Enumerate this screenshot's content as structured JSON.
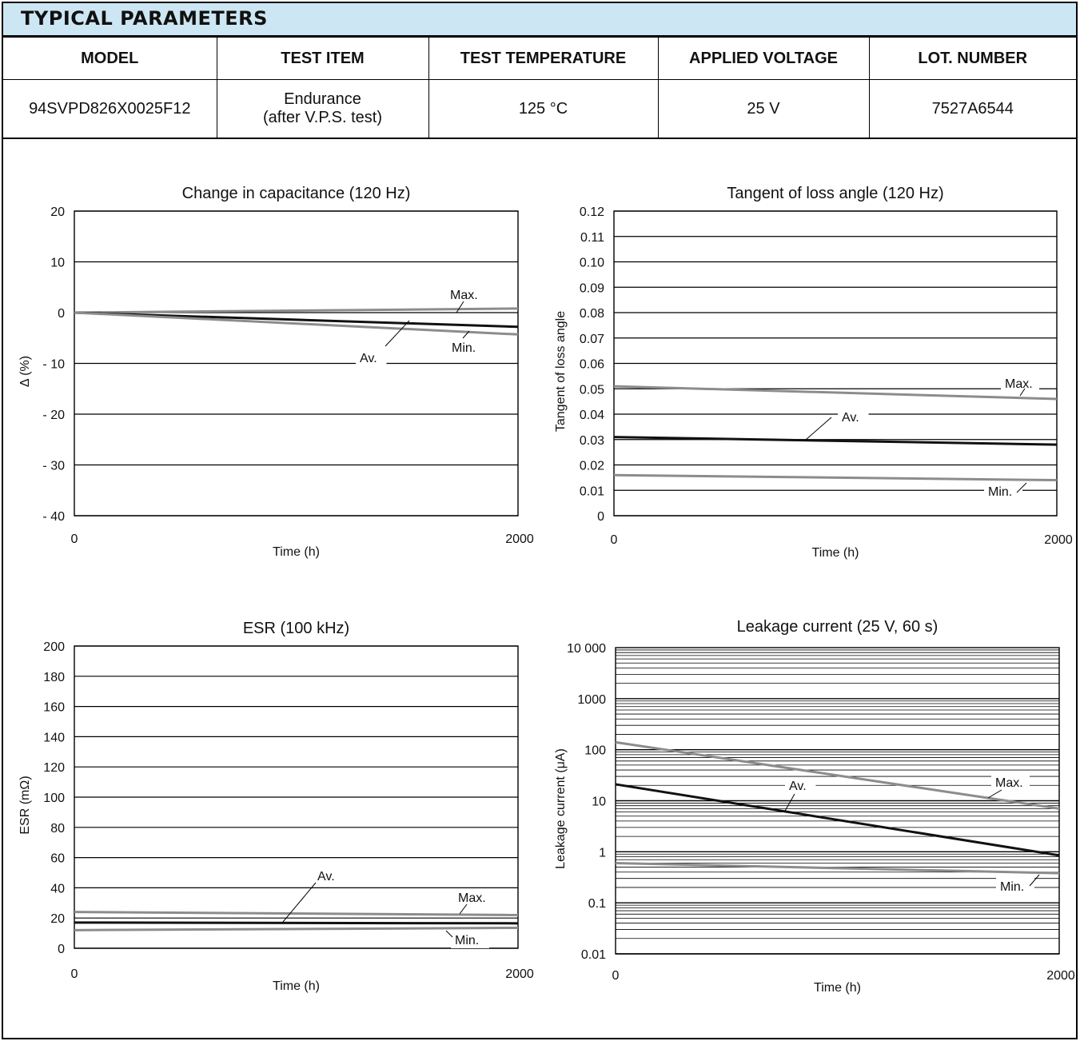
{
  "header": {
    "title": "TYPICAL PARAMETERS"
  },
  "table": {
    "columns": [
      "MODEL",
      "TEST ITEM",
      "TEST TEMPERATURE",
      "APPLIED VOLTAGE",
      "LOT. NUMBER"
    ],
    "row": {
      "model": "94SVPD826X0025F12",
      "test_item_line1": "Endurance",
      "test_item_line2": "(after V.P.S. test)",
      "temperature": "125 °C",
      "voltage": "25 V",
      "lot": "7527A6544"
    }
  },
  "colors": {
    "header_bg": "#cde6f3",
    "av_line": "#111111",
    "minmax_line": "#8c8c8c",
    "grid": "#000000"
  },
  "chart_data": [
    {
      "type": "line",
      "title": "Change in capacitance (120 Hz)",
      "xlabel": "Time (h)",
      "ylabel": "Δ (%)",
      "xlim": [
        0,
        2000
      ],
      "ylim": [
        -40,
        20
      ],
      "xticks": [
        "0",
        "2000"
      ],
      "yticks": [
        {
          "v": 20,
          "label": "20"
        },
        {
          "v": 10,
          "label": "10"
        },
        {
          "v": 0,
          "label": "0"
        },
        {
          "v": -10,
          "label": "- 10"
        },
        {
          "v": -20,
          "label": "- 20"
        },
        {
          "v": -30,
          "label": "- 30"
        },
        {
          "v": -40,
          "label": "- 40"
        }
      ],
      "grid": true,
      "series": [
        {
          "name": "Max.",
          "x": [
            0,
            2000
          ],
          "y": [
            0,
            0.8
          ]
        },
        {
          "name": "Av.",
          "x": [
            0,
            2000
          ],
          "y": [
            0,
            -2.8
          ]
        },
        {
          "name": "Min.",
          "x": [
            0,
            2000
          ],
          "y": [
            0,
            -4.3
          ]
        }
      ]
    },
    {
      "type": "line",
      "title": "Tangent of loss angle (120 Hz)",
      "xlabel": "Time (h)",
      "ylabel": "Tangent of loss angle",
      "xlim": [
        0,
        2000
      ],
      "ylim": [
        0,
        0.12
      ],
      "xticks": [
        "0",
        "2000"
      ],
      "yticks": [
        {
          "v": 0.12,
          "label": "0.12"
        },
        {
          "v": 0.11,
          "label": "0.11"
        },
        {
          "v": 0.1,
          "label": "0.10"
        },
        {
          "v": 0.09,
          "label": "0.09"
        },
        {
          "v": 0.08,
          "label": "0.08"
        },
        {
          "v": 0.07,
          "label": "0.07"
        },
        {
          "v": 0.06,
          "label": "0.06"
        },
        {
          "v": 0.05,
          "label": "0.05"
        },
        {
          "v": 0.04,
          "label": "0.04"
        },
        {
          "v": 0.03,
          "label": "0.03"
        },
        {
          "v": 0.02,
          "label": "0.02"
        },
        {
          "v": 0.01,
          "label": "0.01"
        },
        {
          "v": 0,
          "label": "0"
        }
      ],
      "grid": true,
      "series": [
        {
          "name": "Max.",
          "x": [
            0,
            2000
          ],
          "y": [
            0.051,
            0.046
          ]
        },
        {
          "name": "Av.",
          "x": [
            0,
            2000
          ],
          "y": [
            0.031,
            0.028
          ]
        },
        {
          "name": "Min.",
          "x": [
            0,
            2000
          ],
          "y": [
            0.016,
            0.014
          ]
        }
      ]
    },
    {
      "type": "line",
      "title": "ESR (100 kHz)",
      "xlabel": "Time (h)",
      "ylabel": "ESR (mΩ)",
      "xlim": [
        0,
        2000
      ],
      "ylim": [
        0,
        200
      ],
      "xticks": [
        "0",
        "2000"
      ],
      "yticks": [
        {
          "v": 200,
          "label": "200"
        },
        {
          "v": 180,
          "label": "180"
        },
        {
          "v": 160,
          "label": "160"
        },
        {
          "v": 140,
          "label": "140"
        },
        {
          "v": 120,
          "label": "120"
        },
        {
          "v": 100,
          "label": "100"
        },
        {
          "v": 80,
          "label": "80"
        },
        {
          "v": 60,
          "label": "60"
        },
        {
          "v": 40,
          "label": "40"
        },
        {
          "v": 20,
          "label": "20"
        },
        {
          "v": 0,
          "label": "0"
        }
      ],
      "grid": true,
      "series": [
        {
          "name": "Max.",
          "x": [
            0,
            2000
          ],
          "y": [
            24,
            22
          ]
        },
        {
          "name": "Av.",
          "x": [
            0,
            2000
          ],
          "y": [
            17,
            16.5
          ]
        },
        {
          "name": "Min.",
          "x": [
            0,
            2000
          ],
          "y": [
            12,
            13.5
          ]
        }
      ]
    },
    {
      "type": "line",
      "title": "Leakage current (25 V, 60 s)",
      "xlabel": "Time (h)",
      "ylabel": "Leakage current (μA)",
      "xlim": [
        0,
        2000
      ],
      "ylim": [
        0.01,
        10000
      ],
      "yscale": "log",
      "xticks": [
        "0",
        "2000"
      ],
      "yticks": [
        {
          "v": 10000,
          "label": "10 000"
        },
        {
          "v": 1000,
          "label": "1000"
        },
        {
          "v": 100,
          "label": "100"
        },
        {
          "v": 10,
          "label": "10"
        },
        {
          "v": 1,
          "label": "1"
        },
        {
          "v": 0.1,
          "label": "0.1"
        },
        {
          "v": 0.01,
          "label": "0.01"
        }
      ],
      "grid": true,
      "series": [
        {
          "name": "Max.",
          "x": [
            0,
            2000
          ],
          "y": [
            140,
            7
          ]
        },
        {
          "name": "Av.",
          "x": [
            0,
            2000
          ],
          "y": [
            21,
            0.85
          ]
        },
        {
          "name": "Min.",
          "x": [
            0,
            2000
          ],
          "y": [
            0.6,
            0.38
          ]
        }
      ]
    }
  ]
}
